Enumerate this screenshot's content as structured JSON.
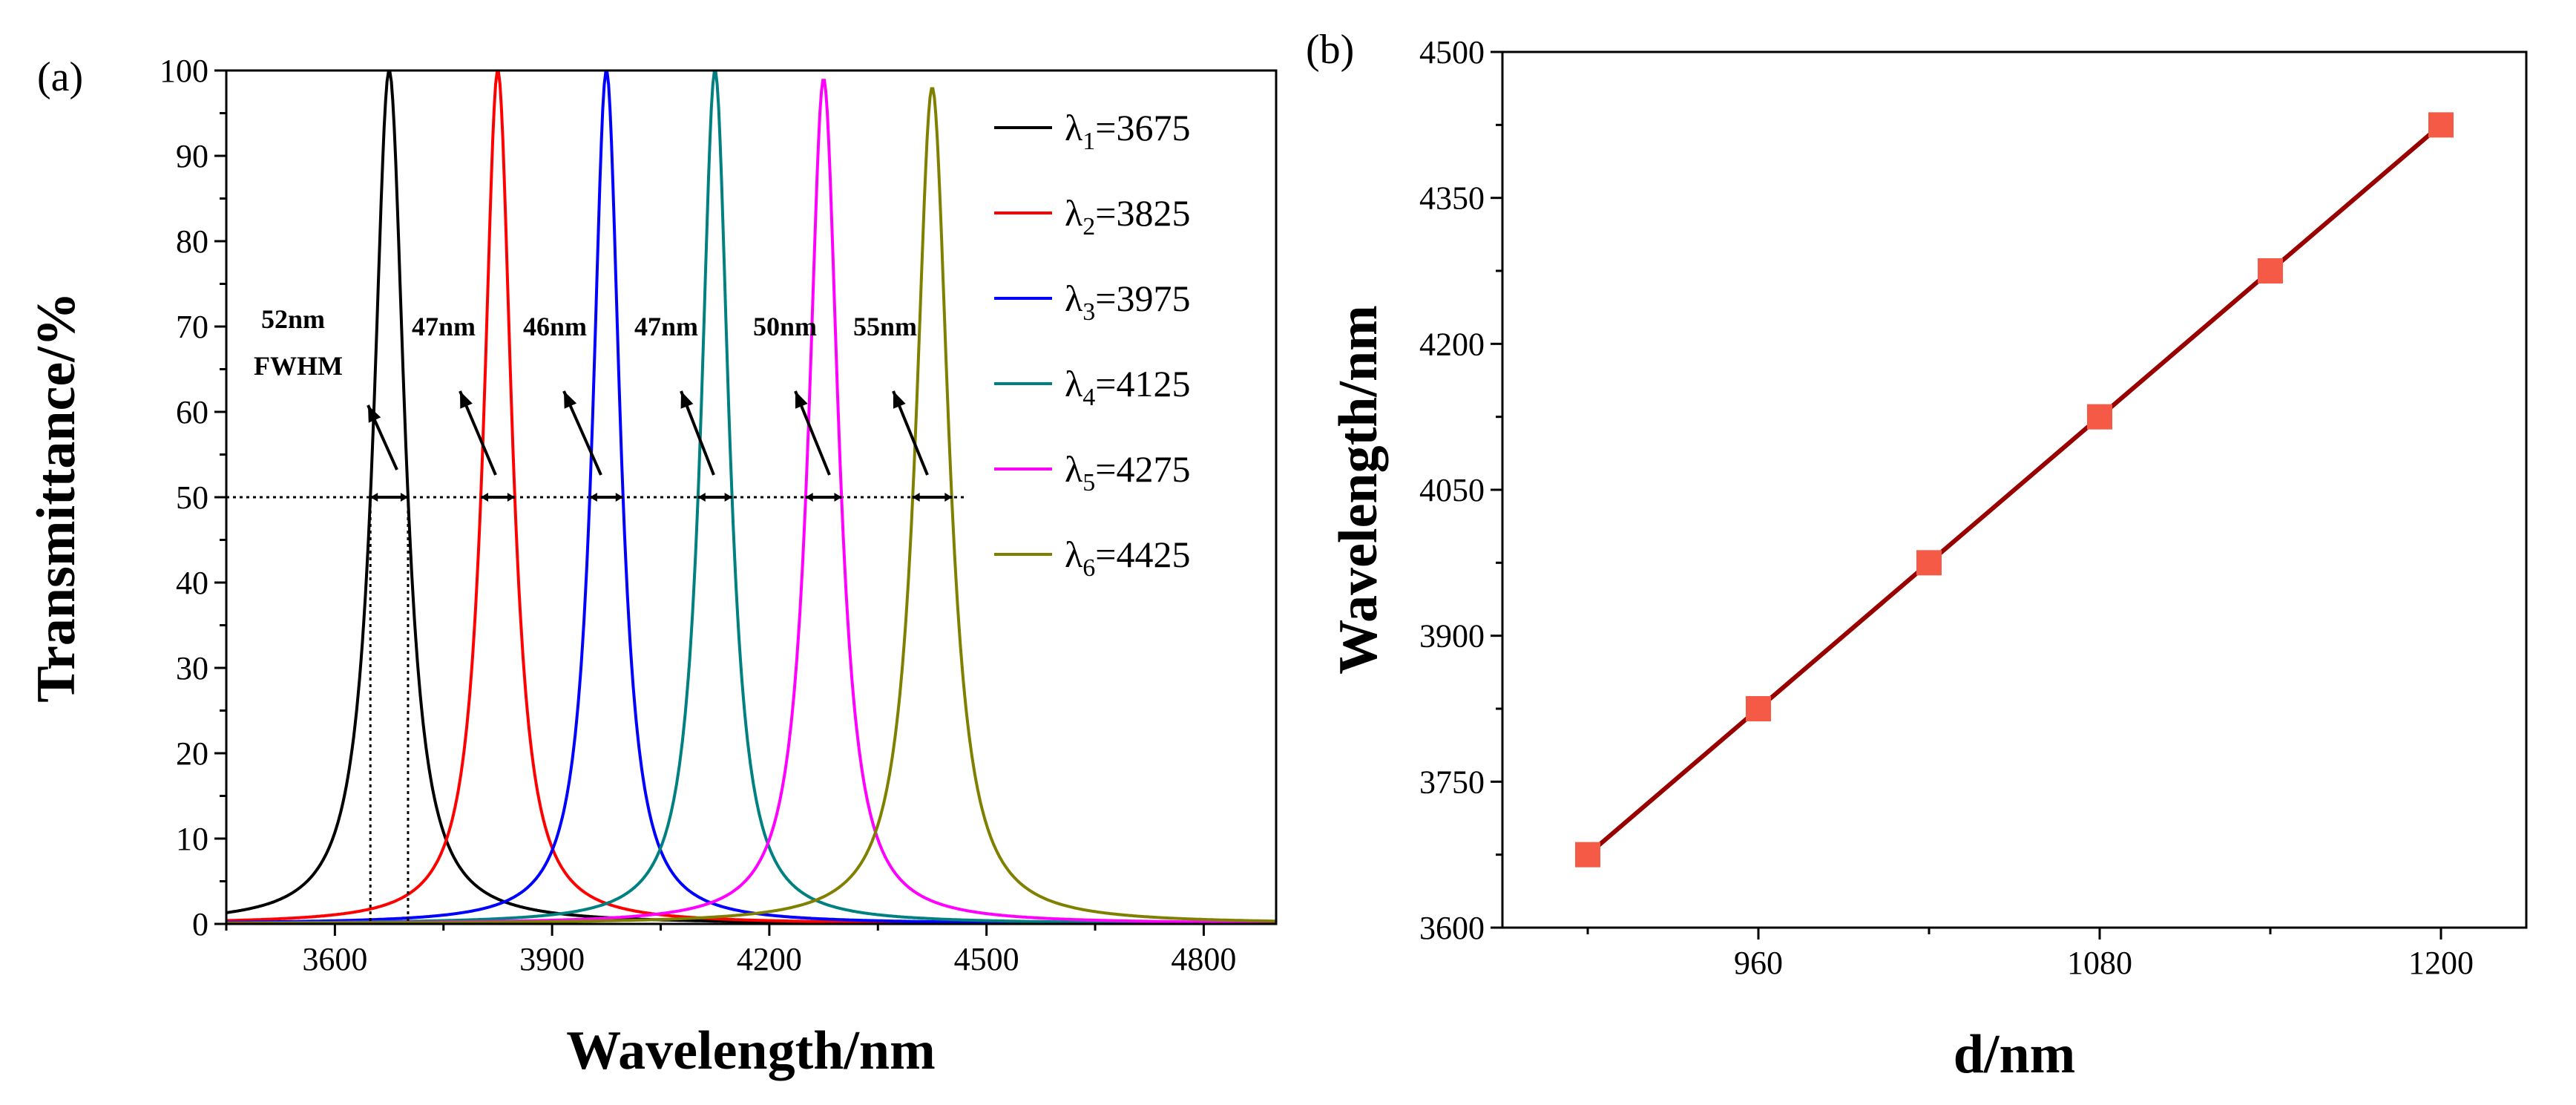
{
  "chart_data": [
    {
      "panel": "(a)",
      "type": "line",
      "title": "",
      "xlabel": "Wavelength/nm",
      "ylabel": "Transmittance/%",
      "xlim": [
        3450,
        4900
      ],
      "ylim": [
        0,
        100
      ],
      "xticks": [
        3600,
        3900,
        4200,
        4500,
        4800
      ],
      "yticks": [
        0,
        10,
        20,
        30,
        40,
        50,
        60,
        70,
        80,
        90,
        100
      ],
      "grid": false,
      "legend_position": "top-right",
      "half_max_level": 50,
      "series": [
        {
          "name": "λ1=3675",
          "greek": "λ",
          "sub": "1",
          "value_text": "=3675",
          "color": "#000000",
          "peak_wavelength": 3675,
          "peak_transmittance": 100,
          "fwhm": 52,
          "fwhm_label": "52nm",
          "fwhm_note": "FWHM"
        },
        {
          "name": "λ2=3825",
          "greek": "λ",
          "sub": "2",
          "value_text": "=3825",
          "color": "#ff0000",
          "peak_wavelength": 3825,
          "peak_transmittance": 100,
          "fwhm": 47,
          "fwhm_label": "47nm"
        },
        {
          "name": "λ3=3975",
          "greek": "λ",
          "sub": "3",
          "value_text": "=3975",
          "color": "#0000ff",
          "peak_wavelength": 3975,
          "peak_transmittance": 100,
          "fwhm": 46,
          "fwhm_label": "46nm"
        },
        {
          "name": "λ4=4125",
          "greek": "λ",
          "sub": "4",
          "value_text": "=4125",
          "color": "#008080",
          "peak_wavelength": 4125,
          "peak_transmittance": 100,
          "fwhm": 47,
          "fwhm_label": "47nm"
        },
        {
          "name": "λ5=4275",
          "greek": "λ",
          "sub": "5",
          "value_text": "=4275",
          "color": "#ff00ff",
          "peak_wavelength": 4275,
          "peak_transmittance": 99,
          "fwhm": 50,
          "fwhm_label": "50nm"
        },
        {
          "name": "λ6=4425",
          "greek": "λ",
          "sub": "6",
          "value_text": "=4425",
          "color": "#808000",
          "peak_wavelength": 4425,
          "peak_transmittance": 98,
          "fwhm": 55,
          "fwhm_label": "55nm"
        }
      ]
    },
    {
      "panel": "(b)",
      "type": "line",
      "title": "",
      "xlabel": "d/nm",
      "ylabel": "Wavelength/nm",
      "xlim": [
        870,
        1230
      ],
      "ylim": [
        3600,
        4500
      ],
      "xticks": [
        960,
        1080,
        1200
      ],
      "yticks": [
        3600,
        3750,
        3900,
        4050,
        4200,
        4350,
        4500
      ],
      "grid": false,
      "line_color": "#990000",
      "marker_color": "#f45a45",
      "x": [
        900,
        960,
        1020,
        1080,
        1140,
        1200
      ],
      "y": [
        3675,
        3825,
        3975,
        4125,
        4275,
        4425
      ]
    }
  ]
}
